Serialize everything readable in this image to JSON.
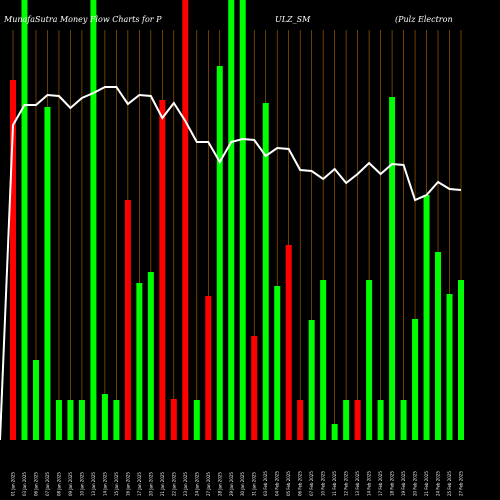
{
  "chart_data": {
    "type": "bar",
    "title_left": "MunafaSutra  Money  Flow  Charts for P",
    "title_mid": "ULZ_SM",
    "title_right": "(Pulz Electron",
    "categories": [
      "01 Jan 2025",
      "03 Jan 2025",
      "06 Jan 2025",
      "07 Jan 2025",
      "08 Jan 2025",
      "09 Jan 2025",
      "10 Jan 2025",
      "13 Jan 2025",
      "14 Jan 2025",
      "15 Jan 2025",
      "16 Jan 2025",
      "17 Jan 2025",
      "20 Jan 2025",
      "21 Jan 2025",
      "22 Jan 2025",
      "23 Jan 2025",
      "24 Jan 2025",
      "27 Jan 2025",
      "28 Jan 2025",
      "29 Jan 2025",
      "30 Jan 2025",
      "31 Jan 2025",
      "03 Feb 2025",
      "04 Feb 2025",
      "05 Feb 2025",
      "06 Feb 2025",
      "07 Feb 2025",
      "10 Feb 2025",
      "11 Feb 2025",
      "12 Feb 2025",
      "13 Feb 2025",
      "14 Feb 2025",
      "17 Feb 2025",
      "18 Feb 2025",
      "19 Feb 2025",
      "20 Feb 2025",
      "21 Feb 2025",
      "24 Feb 2025",
      "25 Feb 2025",
      "27 Feb 2025"
    ],
    "bar_heights_px": [
      360,
      440,
      80,
      333,
      40,
      40,
      40,
      440,
      46,
      40,
      240,
      157,
      168,
      340,
      41,
      440,
      40,
      144,
      374,
      440,
      440,
      104,
      337,
      154,
      195,
      40,
      120,
      160,
      16,
      40,
      40,
      160,
      40,
      343,
      40,
      121,
      245,
      188,
      146,
      160
    ],
    "bar_colors": [
      "red",
      "green",
      "green",
      "green",
      "green",
      "green",
      "green",
      "green",
      "green",
      "green",
      "red",
      "green",
      "green",
      "red",
      "red",
      "red",
      "green",
      "red",
      "green",
      "green",
      "green",
      "red",
      "green",
      "green",
      "red",
      "red",
      "green",
      "green",
      "green",
      "green",
      "red",
      "green",
      "green",
      "green",
      "green",
      "green",
      "green",
      "green",
      "green",
      "green"
    ],
    "price_line_y": [
      125,
      105,
      105,
      95,
      96,
      108,
      98,
      93,
      87,
      87,
      104,
      95,
      96,
      118,
      103,
      121,
      142,
      142,
      162,
      142,
      139,
      140,
      156,
      148,
      149,
      170,
      171,
      179,
      169,
      183,
      174,
      163,
      174,
      164,
      165,
      200,
      195,
      182,
      189,
      190
    ],
    "colors": {
      "green": "#00ff00",
      "red": "#ff0000",
      "line": "#ffffff",
      "grid": "#b36b00"
    }
  }
}
